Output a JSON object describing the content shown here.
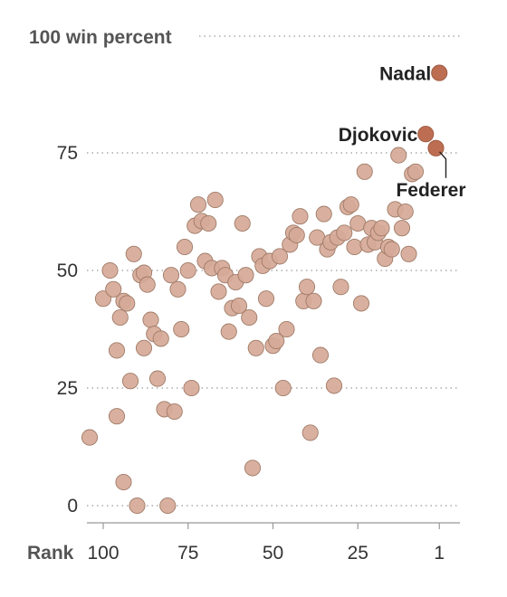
{
  "chart_data": {
    "type": "scatter",
    "y_title_number": "100",
    "y_title_text": "win percent",
    "x_title": "Rank",
    "xlim": [
      100,
      1
    ],
    "ylim": [
      0,
      100
    ],
    "x_ticks": [
      100,
      75,
      50,
      25,
      1
    ],
    "y_ticks": [
      0,
      25,
      50,
      75
    ],
    "grid": true,
    "colors": {
      "others": "#d6a997",
      "highlight": "#bd6e52"
    },
    "highlighted": [
      {
        "name": "Nadal",
        "x": 1,
        "y": 92
      },
      {
        "name": "Djokovic",
        "x": 5,
        "y": 79
      },
      {
        "name": "Federer",
        "x": 2,
        "y": 76
      }
    ],
    "points": [
      [
        100,
        44
      ],
      [
        98,
        50
      ],
      [
        97,
        46
      ],
      [
        96,
        33
      ],
      [
        95,
        40
      ],
      [
        94,
        43.5
      ],
      [
        93,
        43
      ],
      [
        92,
        26.5
      ],
      [
        91,
        53.5
      ],
      [
        89,
        49
      ],
      [
        88,
        49.5
      ],
      [
        87,
        47
      ],
      [
        86,
        39.5
      ],
      [
        85,
        36.5
      ],
      [
        84,
        27
      ],
      [
        83,
        35.5
      ],
      [
        82,
        20.5
      ],
      [
        81,
        0
      ],
      [
        80,
        49
      ],
      [
        79,
        20
      ],
      [
        78,
        46
      ],
      [
        77,
        37.5
      ],
      [
        76,
        55
      ],
      [
        75,
        50
      ],
      [
        74,
        25
      ],
      [
        73,
        59.5
      ],
      [
        72,
        64
      ],
      [
        71,
        60.5
      ],
      [
        70,
        52
      ],
      [
        69,
        60
      ],
      [
        68,
        50.5
      ],
      [
        67,
        65
      ],
      [
        66,
        45.5
      ],
      [
        65,
        50.5
      ],
      [
        64,
        49
      ],
      [
        63,
        37
      ],
      [
        62,
        42
      ],
      [
        61,
        47.5
      ],
      [
        60,
        42.5
      ],
      [
        59,
        60
      ],
      [
        58,
        49
      ],
      [
        57,
        40
      ],
      [
        56,
        8
      ],
      [
        55,
        33.5
      ],
      [
        54,
        53
      ],
      [
        53,
        51
      ],
      [
        52,
        44
      ],
      [
        51,
        52
      ],
      [
        50,
        34
      ],
      [
        49,
        35
      ],
      [
        48,
        53
      ],
      [
        47,
        25
      ],
      [
        46,
        37.5
      ],
      [
        45,
        55.5
      ],
      [
        44,
        58
      ],
      [
        43,
        57.5
      ],
      [
        42,
        61.5
      ],
      [
        41,
        43.5
      ],
      [
        40,
        46.5
      ],
      [
        39,
        15.5
      ],
      [
        38,
        43.5
      ],
      [
        37,
        57
      ],
      [
        36,
        32
      ],
      [
        35,
        62
      ],
      [
        34,
        54.5
      ],
      [
        33,
        56
      ],
      [
        32,
        25.5
      ],
      [
        31,
        57
      ],
      [
        30,
        46.5
      ],
      [
        29,
        58
      ],
      [
        28,
        63.5
      ],
      [
        27,
        64
      ],
      [
        26,
        55
      ],
      [
        25,
        60
      ],
      [
        24,
        43
      ],
      [
        23,
        71
      ],
      [
        22,
        55.5
      ],
      [
        21,
        59
      ],
      [
        20,
        56
      ],
      [
        19,
        58
      ],
      [
        18,
        59
      ],
      [
        17,
        52.5
      ],
      [
        16,
        55
      ],
      [
        15,
        54.5
      ],
      [
        14,
        63
      ],
      [
        13,
        74.5
      ],
      [
        12,
        59
      ],
      [
        11,
        62.5
      ],
      [
        10,
        53.5
      ],
      [
        9,
        70.5
      ],
      [
        8,
        71
      ],
      [
        104,
        14.5
      ],
      [
        96,
        19
      ],
      [
        94,
        5
      ],
      [
        90,
        0
      ],
      [
        88,
        33.5
      ]
    ]
  }
}
